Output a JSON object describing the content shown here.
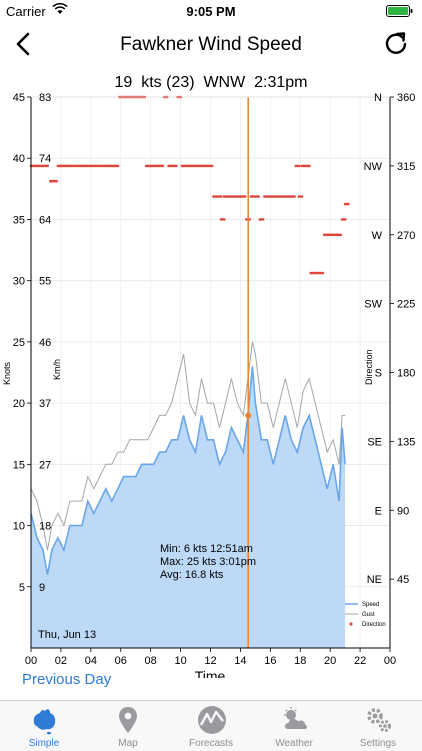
{
  "status_bar": {
    "carrier": "Carrier",
    "time": "9:05 PM"
  },
  "header": {
    "title": "Fawkner Wind Speed"
  },
  "current": {
    "speed": "19",
    "unit": "kts",
    "gust": "(23)",
    "direction": "WNW",
    "time": "2:31pm"
  },
  "chart_data": {
    "type": "area",
    "x_label": "Time",
    "y_label_left": "Knots",
    "y_label_kmh": "Km/h",
    "y_label_right": "Direction",
    "x_ticks": [
      "00",
      "02",
      "04",
      "06",
      "08",
      "10",
      "12",
      "14",
      "16",
      "18",
      "20",
      "22",
      "00"
    ],
    "knots_ticks": [
      "5",
      "10",
      "15",
      "20",
      "25",
      "30",
      "35",
      "40",
      "45"
    ],
    "kmh_ticks": [
      "9",
      "18",
      "27",
      "37",
      "46",
      "55",
      "64",
      "74",
      "83"
    ],
    "direction_ticks": [
      "NE 45",
      "E 90",
      "SE 135",
      "S 180",
      "SW 225",
      "W 270",
      "NW 315",
      "N 360"
    ],
    "xlim": [
      0,
      24
    ],
    "ylim_knots": [
      0,
      45
    ],
    "ylim_direction": [
      0,
      360
    ],
    "date_label": "Thu, Jun 13",
    "cursor_time": 14.52,
    "stats": {
      "min": "Min:  6 kts  12:51am",
      "max": "Max:  25 kts  3:01pm",
      "avg": "Avg:  16.8 kts"
    },
    "legend": {
      "speed": "Speed",
      "gust": "Gust",
      "direction": "Direction"
    },
    "series_speed": [
      [
        0,
        11
      ],
      [
        0.4,
        9
      ],
      [
        0.8,
        8
      ],
      [
        1.1,
        6
      ],
      [
        1.4,
        8
      ],
      [
        1.8,
        9
      ],
      [
        2.2,
        8
      ],
      [
        2.6,
        10
      ],
      [
        3.0,
        10
      ],
      [
        3.4,
        10
      ],
      [
        3.8,
        12
      ],
      [
        4.2,
        11
      ],
      [
        4.6,
        12
      ],
      [
        5.0,
        13
      ],
      [
        5.4,
        12
      ],
      [
        5.8,
        13
      ],
      [
        6.2,
        14
      ],
      [
        6.6,
        14
      ],
      [
        7.0,
        14
      ],
      [
        7.4,
        15
      ],
      [
        7.8,
        15
      ],
      [
        8.2,
        15
      ],
      [
        8.6,
        16
      ],
      [
        9.0,
        16
      ],
      [
        9.4,
        17
      ],
      [
        9.8,
        17
      ],
      [
        10.2,
        19
      ],
      [
        10.6,
        17
      ],
      [
        11.0,
        16
      ],
      [
        11.4,
        19
      ],
      [
        11.8,
        17
      ],
      [
        12.2,
        17
      ],
      [
        12.6,
        15
      ],
      [
        13.0,
        16
      ],
      [
        13.4,
        18
      ],
      [
        13.8,
        17
      ],
      [
        14.2,
        16
      ],
      [
        14.5,
        19
      ],
      [
        14.8,
        23
      ],
      [
        15.0,
        20
      ],
      [
        15.4,
        17
      ],
      [
        15.8,
        17
      ],
      [
        16.2,
        15
      ],
      [
        16.6,
        17
      ],
      [
        17.0,
        19
      ],
      [
        17.4,
        17
      ],
      [
        17.8,
        16
      ],
      [
        18.2,
        18
      ],
      [
        18.6,
        19
      ],
      [
        19.0,
        17
      ],
      [
        19.4,
        15
      ],
      [
        19.8,
        13
      ],
      [
        20.2,
        15
      ],
      [
        20.6,
        12
      ],
      [
        20.8,
        18
      ],
      [
        21.0,
        15
      ]
    ],
    "series_gust": [
      [
        0,
        13
      ],
      [
        0.4,
        12
      ],
      [
        0.8,
        10
      ],
      [
        1.1,
        8
      ],
      [
        1.4,
        10
      ],
      [
        1.8,
        11
      ],
      [
        2.2,
        10
      ],
      [
        2.6,
        12
      ],
      [
        3.0,
        12
      ],
      [
        3.4,
        12
      ],
      [
        3.8,
        14
      ],
      [
        4.2,
        13
      ],
      [
        4.6,
        14
      ],
      [
        5.0,
        15
      ],
      [
        5.4,
        15
      ],
      [
        5.8,
        16
      ],
      [
        6.2,
        16
      ],
      [
        6.6,
        17
      ],
      [
        7.0,
        17
      ],
      [
        7.4,
        17
      ],
      [
        7.8,
        17
      ],
      [
        8.2,
        18
      ],
      [
        8.6,
        19
      ],
      [
        9.0,
        19
      ],
      [
        9.4,
        20
      ],
      [
        9.8,
        22
      ],
      [
        10.2,
        24
      ],
      [
        10.6,
        20
      ],
      [
        11.0,
        19
      ],
      [
        11.4,
        22
      ],
      [
        11.8,
        20
      ],
      [
        12.2,
        20
      ],
      [
        12.6,
        18
      ],
      [
        13.0,
        20
      ],
      [
        13.4,
        22
      ],
      [
        13.8,
        20
      ],
      [
        14.2,
        19
      ],
      [
        14.5,
        22
      ],
      [
        14.8,
        25
      ],
      [
        15.0,
        24
      ],
      [
        15.4,
        20
      ],
      [
        15.8,
        20
      ],
      [
        16.2,
        18
      ],
      [
        16.6,
        20
      ],
      [
        17.0,
        22
      ],
      [
        17.4,
        20
      ],
      [
        17.8,
        18
      ],
      [
        18.2,
        21
      ],
      [
        18.6,
        22
      ],
      [
        19.0,
        20
      ],
      [
        19.4,
        18
      ],
      [
        19.8,
        16
      ],
      [
        20.2,
        17
      ],
      [
        20.6,
        15
      ],
      [
        20.8,
        19
      ],
      [
        21.0,
        19
      ]
    ],
    "direction_points": [
      [
        0.0,
        315
      ],
      [
        0.3,
        315
      ],
      [
        0.6,
        315
      ],
      [
        0.9,
        315
      ],
      [
        1.3,
        305
      ],
      [
        1.5,
        305
      ],
      [
        1.8,
        315
      ],
      [
        2.0,
        315
      ],
      [
        2.3,
        315
      ],
      [
        2.6,
        315
      ],
      [
        2.9,
        315
      ],
      [
        3.2,
        315
      ],
      [
        3.5,
        315
      ],
      [
        3.8,
        315
      ],
      [
        4.1,
        315
      ],
      [
        4.4,
        315
      ],
      [
        4.7,
        315
      ],
      [
        5.0,
        315
      ],
      [
        5.3,
        315
      ],
      [
        5.6,
        315
      ],
      [
        5.9,
        360
      ],
      [
        6.2,
        360
      ],
      [
        6.5,
        360
      ],
      [
        6.8,
        360
      ],
      [
        7.1,
        360
      ],
      [
        7.4,
        360
      ],
      [
        7.7,
        315
      ],
      [
        8.0,
        315
      ],
      [
        8.3,
        315
      ],
      [
        8.6,
        315
      ],
      [
        8.9,
        360
      ],
      [
        9.2,
        315
      ],
      [
        9.5,
        315
      ],
      [
        9.8,
        360
      ],
      [
        10.1,
        315
      ],
      [
        10.4,
        315
      ],
      [
        10.7,
        315
      ],
      [
        11.0,
        315
      ],
      [
        11.3,
        315
      ],
      [
        11.6,
        315
      ],
      [
        11.9,
        315
      ],
      [
        12.2,
        295
      ],
      [
        12.5,
        295
      ],
      [
        12.7,
        280
      ],
      [
        12.9,
        295
      ],
      [
        13.2,
        295
      ],
      [
        13.5,
        295
      ],
      [
        13.8,
        295
      ],
      [
        14.1,
        295
      ],
      [
        14.4,
        280
      ],
      [
        14.7,
        295
      ],
      [
        15.0,
        295
      ],
      [
        15.3,
        280
      ],
      [
        15.6,
        295
      ],
      [
        15.9,
        295
      ],
      [
        16.2,
        295
      ],
      [
        16.5,
        295
      ],
      [
        16.8,
        295
      ],
      [
        17.1,
        295
      ],
      [
        17.4,
        295
      ],
      [
        17.7,
        315
      ],
      [
        17.9,
        295
      ],
      [
        18.1,
        315
      ],
      [
        18.4,
        315
      ],
      [
        18.7,
        245
      ],
      [
        19.0,
        245
      ],
      [
        19.3,
        245
      ],
      [
        19.6,
        270
      ],
      [
        19.9,
        270
      ],
      [
        20.2,
        270
      ],
      [
        20.5,
        270
      ],
      [
        20.8,
        280
      ],
      [
        21.0,
        290
      ]
    ]
  },
  "prev_day": {
    "label": "Previous Day"
  },
  "tabs": [
    {
      "label": "Simple",
      "active": true
    },
    {
      "label": "Map",
      "active": false
    },
    {
      "label": "Forecasts",
      "active": false
    },
    {
      "label": "Weather",
      "active": false
    },
    {
      "label": "Settings",
      "active": false
    }
  ],
  "colors": {
    "accent": "#2f7bd6",
    "speed_fill": "#bcd9f7",
    "speed_line": "#6aa6e8",
    "gust_line": "#a6a6a6",
    "direction": "#e0453a",
    "cursor": "#e9832c"
  }
}
